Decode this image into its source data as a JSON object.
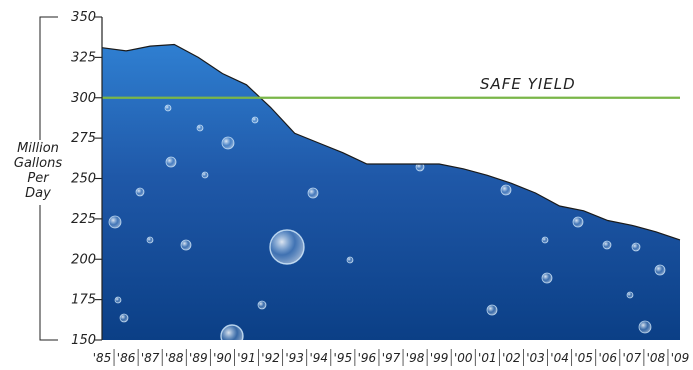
{
  "chart_data": {
    "type": "area",
    "title": "",
    "xlabel": "",
    "ylabel_lines": [
      "Million",
      "Gallons",
      "Per",
      "Day"
    ],
    "x": [
      "'85",
      "'86",
      "'87",
      "'88",
      "'89",
      "'90",
      "'91",
      "'92",
      "'93",
      "'94",
      "'95",
      "'96",
      "'97",
      "'98",
      "'99",
      "'00",
      "'01",
      "'02",
      "'03",
      "'04",
      "'05",
      "'06",
      "'07",
      "'08",
      "'09"
    ],
    "values": [
      331,
      329,
      332,
      333,
      325,
      315,
      308,
      294,
      278,
      272,
      266,
      259,
      259,
      259,
      259,
      256,
      252,
      247,
      241,
      233,
      230,
      224,
      221,
      217,
      212
    ],
    "ylim": [
      150,
      350
    ],
    "yticks": [
      150,
      175,
      200,
      225,
      250,
      275,
      300,
      325,
      350
    ],
    "reference_line": {
      "value": 300,
      "label": "SAFE YIELD",
      "color": "#7ab648"
    },
    "fill_colors": {
      "top": "#2f7fd1",
      "middle": "#1f58a8",
      "bottom": "#0b3f86"
    },
    "grid": false,
    "legend": "none"
  }
}
